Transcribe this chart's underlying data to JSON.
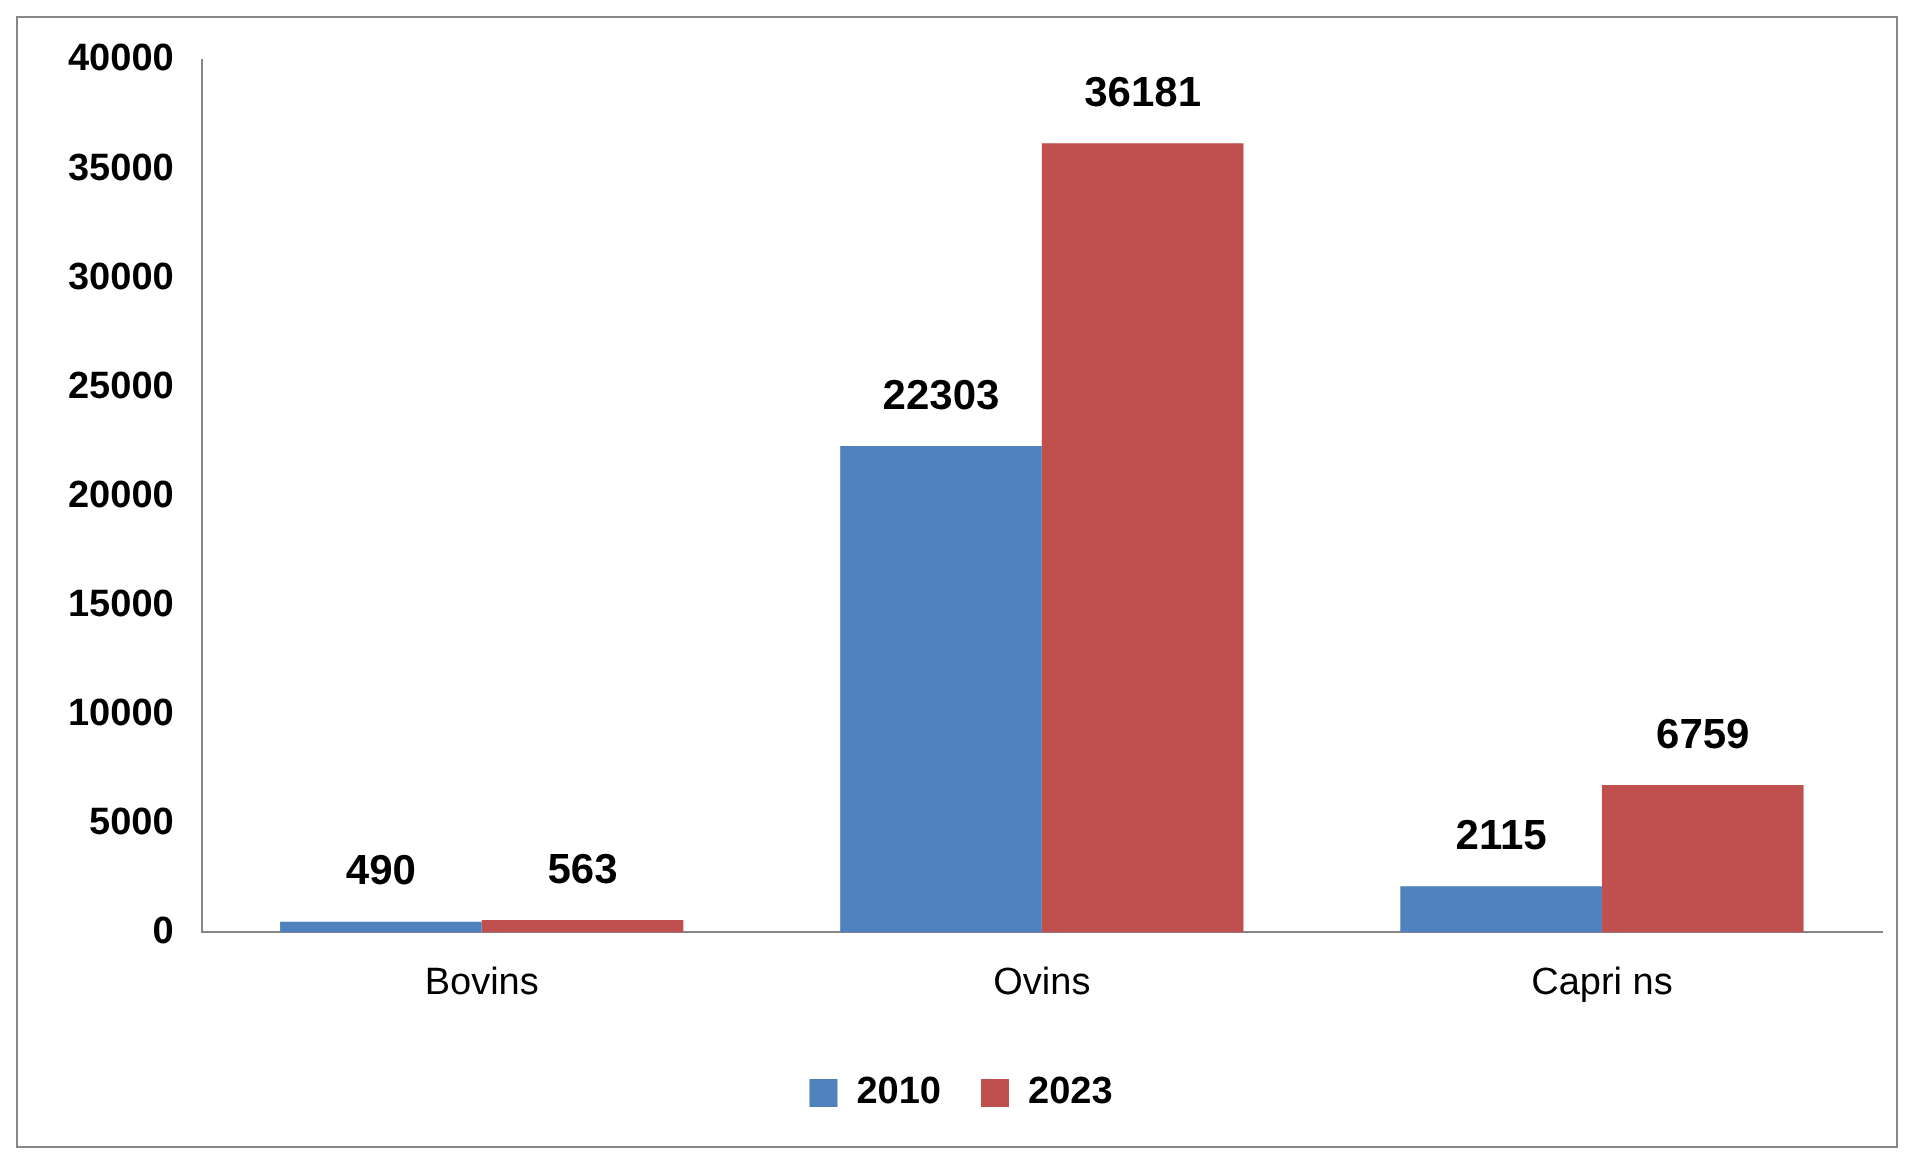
{
  "chart_data": {
    "type": "bar",
    "categories": [
      "Bovins",
      "Ovins",
      "Capri ns"
    ],
    "series": [
      {
        "name": "2010",
        "color": "#4f81bd",
        "values": [
          490,
          22303,
          2115
        ]
      },
      {
        "name": "2023",
        "color": "#c0504d",
        "values": [
          563,
          36181,
          6759
        ]
      }
    ],
    "ylim": [
      0,
      40000
    ],
    "yticks": [
      0,
      5000,
      10000,
      15000,
      20000,
      25000,
      30000,
      35000,
      40000
    ],
    "grid": false,
    "legend": "bottom",
    "data_labels": true
  }
}
